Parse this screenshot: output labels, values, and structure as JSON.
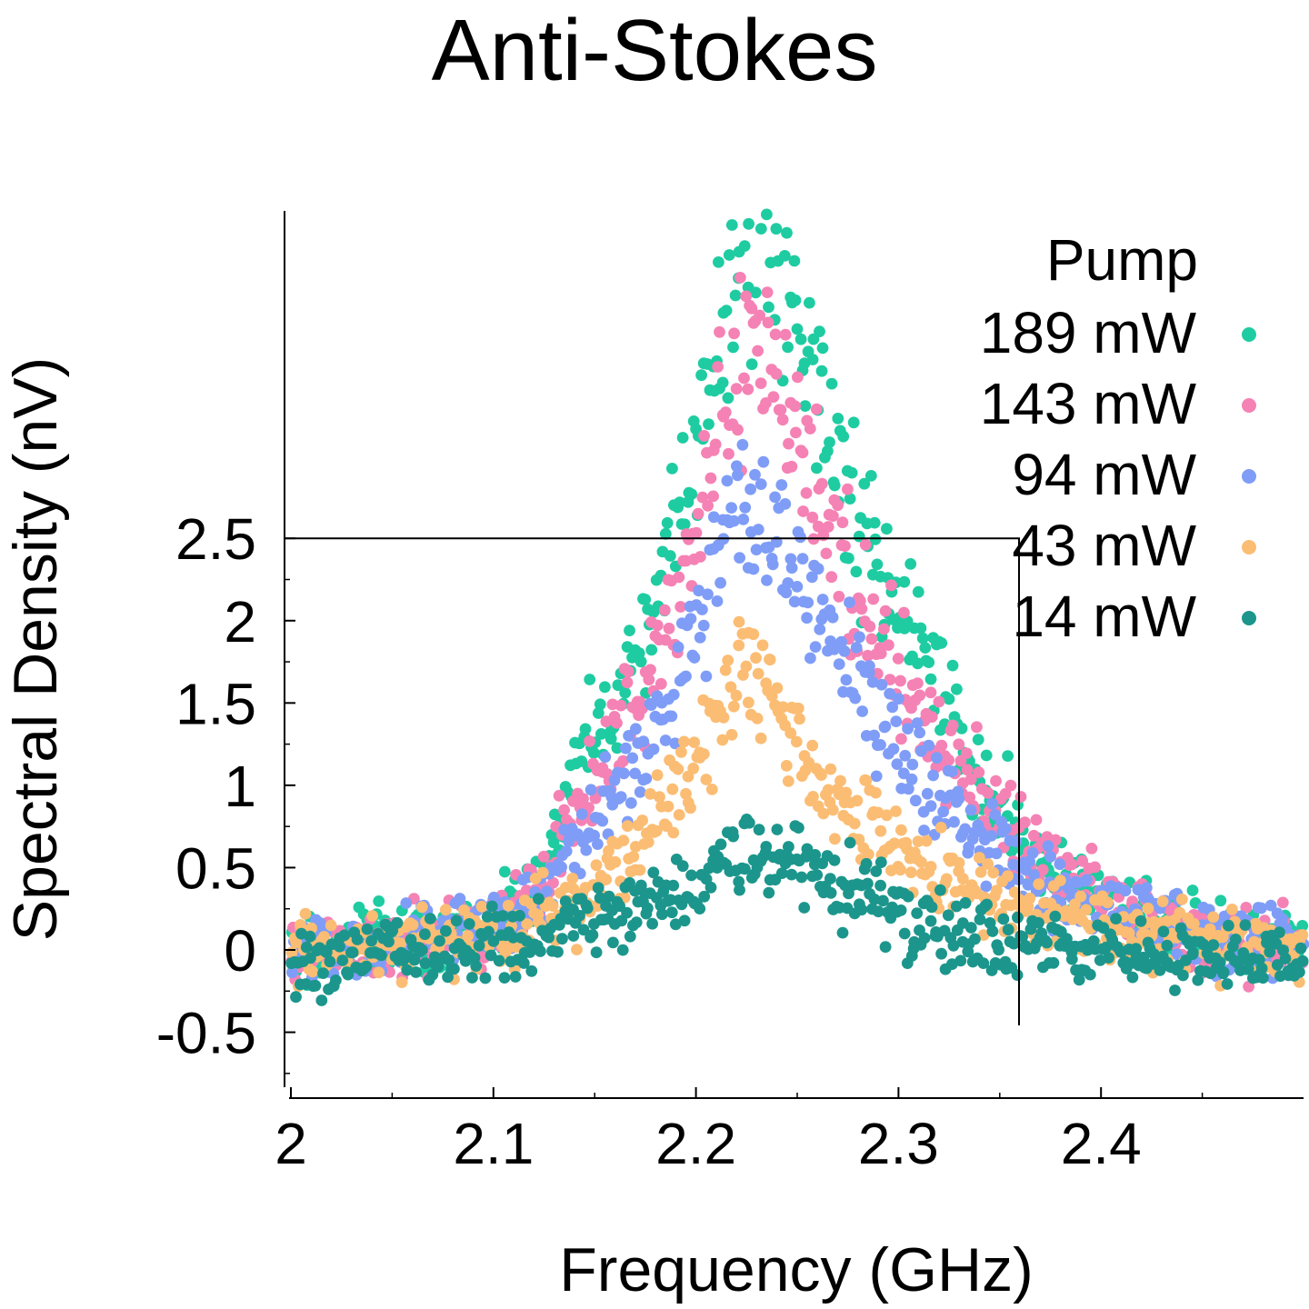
{
  "chart_data": {
    "type": "scatter",
    "title": "Anti-Stokes",
    "xlabel": "Frequency (GHz)",
    "ylabel": "Spectral Density (nV)",
    "xlim": [
      2.0,
      2.5
    ],
    "ylim": [
      -0.9,
      4.5
    ],
    "xticks": [
      {
        "value": 2.0,
        "label": "2"
      },
      {
        "value": 2.1,
        "label": "2.1"
      },
      {
        "value": 2.2,
        "label": "2.2"
      },
      {
        "value": 2.3,
        "label": "2.3"
      },
      {
        "value": 2.4,
        "label": "2.4"
      }
    ],
    "yticks": [
      {
        "value": -0.5,
        "label": "-0.5"
      },
      {
        "value": 0,
        "label": "0"
      },
      {
        "value": 0.5,
        "label": "0.5"
      },
      {
        "value": 1,
        "label": "1"
      },
      {
        "value": 1.5,
        "label": "1.5"
      },
      {
        "value": 2,
        "label": "2"
      },
      {
        "value": 2.5,
        "label": "2.5"
      }
    ],
    "grid": false,
    "legend": {
      "title": "Pump",
      "position": "top-right"
    },
    "series": [
      {
        "name": "189 mW",
        "color": "#1fcca2",
        "x": [
          2.0,
          2.025,
          2.05,
          2.075,
          2.1,
          2.125,
          2.14,
          2.15,
          2.16,
          2.17,
          2.18,
          2.19,
          2.2,
          2.205,
          2.21,
          2.215,
          2.22,
          2.225,
          2.23,
          2.235,
          2.24,
          2.245,
          2.25,
          2.255,
          2.26,
          2.265,
          2.27,
          2.28,
          2.29,
          2.3,
          2.31,
          2.32,
          2.33,
          2.34,
          2.35,
          2.36,
          2.375,
          2.4,
          2.425,
          2.45,
          2.475,
          2.5
        ],
        "y": [
          0.0,
          0.02,
          0.05,
          0.09,
          0.18,
          0.42,
          1.15,
          1.32,
          1.55,
          1.8,
          2.1,
          2.55,
          3.1,
          3.4,
          3.7,
          3.9,
          4.15,
          4.25,
          4.3,
          4.25,
          4.2,
          4.0,
          3.85,
          3.7,
          3.45,
          3.25,
          3.0,
          2.55,
          2.25,
          2.0,
          1.8,
          1.55,
          1.3,
          1.1,
          0.9,
          0.7,
          0.5,
          0.3,
          0.18,
          0.1,
          0.05,
          0.02
        ]
      },
      {
        "name": "143 mW",
        "color": "#f582b4",
        "x": [
          2.0,
          2.025,
          2.05,
          2.075,
          2.1,
          2.125,
          2.14,
          2.15,
          2.16,
          2.17,
          2.18,
          2.19,
          2.2,
          2.205,
          2.21,
          2.215,
          2.22,
          2.225,
          2.23,
          2.235,
          2.24,
          2.245,
          2.25,
          2.255,
          2.26,
          2.265,
          2.27,
          2.28,
          2.29,
          2.3,
          2.31,
          2.32,
          2.33,
          2.34,
          2.35,
          2.36,
          2.375,
          2.4,
          2.425,
          2.45,
          2.475,
          2.5
        ],
        "y": [
          0.0,
          0.02,
          0.05,
          0.08,
          0.16,
          0.36,
          0.82,
          1.0,
          1.22,
          1.5,
          1.8,
          2.2,
          2.6,
          2.85,
          3.1,
          3.3,
          3.5,
          3.6,
          3.75,
          3.65,
          3.55,
          3.4,
          3.2,
          3.05,
          2.9,
          2.7,
          2.5,
          2.2,
          1.9,
          1.7,
          1.5,
          1.3,
          1.1,
          0.95,
          0.8,
          0.65,
          0.5,
          0.32,
          0.2,
          0.11,
          0.05,
          0.02
        ]
      },
      {
        "name": "94 mW",
        "color": "#7f9df7",
        "x": [
          2.0,
          2.025,
          2.05,
          2.075,
          2.1,
          2.125,
          2.14,
          2.15,
          2.16,
          2.17,
          2.18,
          2.19,
          2.2,
          2.205,
          2.21,
          2.215,
          2.22,
          2.225,
          2.23,
          2.235,
          2.24,
          2.245,
          2.25,
          2.255,
          2.26,
          2.265,
          2.27,
          2.28,
          2.29,
          2.3,
          2.31,
          2.32,
          2.33,
          2.34,
          2.35,
          2.36,
          2.375,
          2.4,
          2.425,
          2.45,
          2.475,
          2.5
        ],
        "y": [
          0.0,
          0.02,
          0.04,
          0.07,
          0.14,
          0.32,
          0.62,
          0.78,
          0.95,
          1.12,
          1.35,
          1.6,
          1.95,
          2.15,
          2.4,
          2.55,
          2.65,
          2.6,
          2.55,
          2.5,
          2.45,
          2.4,
          2.3,
          2.2,
          2.1,
          2.0,
          1.9,
          1.65,
          1.45,
          1.25,
          1.1,
          0.95,
          0.8,
          0.7,
          0.6,
          0.5,
          0.4,
          0.28,
          0.18,
          0.1,
          0.05,
          0.02
        ]
      },
      {
        "name": "43 mW",
        "color": "#fbbd74",
        "x": [
          2.0,
          2.025,
          2.05,
          2.075,
          2.1,
          2.125,
          2.14,
          2.15,
          2.16,
          2.17,
          2.18,
          2.19,
          2.2,
          2.205,
          2.21,
          2.215,
          2.22,
          2.225,
          2.23,
          2.235,
          2.24,
          2.245,
          2.25,
          2.255,
          2.26,
          2.265,
          2.27,
          2.28,
          2.29,
          2.3,
          2.31,
          2.32,
          2.33,
          2.34,
          2.35,
          2.36,
          2.375,
          2.4,
          2.425,
          2.45,
          2.475,
          2.5
        ],
        "y": [
          0.0,
          0.02,
          0.04,
          0.06,
          0.1,
          0.18,
          0.3,
          0.38,
          0.48,
          0.62,
          0.78,
          0.95,
          1.15,
          1.28,
          1.4,
          1.5,
          1.58,
          1.62,
          1.6,
          1.55,
          1.45,
          1.35,
          1.25,
          1.15,
          1.05,
          0.98,
          0.9,
          0.8,
          0.72,
          0.62,
          0.55,
          0.48,
          0.42,
          0.36,
          0.3,
          0.25,
          0.2,
          0.14,
          0.1,
          0.06,
          0.03,
          0.01
        ]
      },
      {
        "name": "14 mW",
        "color": "#1c968c",
        "x": [
          2.0,
          2.025,
          2.05,
          2.075,
          2.1,
          2.125,
          2.14,
          2.15,
          2.16,
          2.17,
          2.18,
          2.19,
          2.2,
          2.205,
          2.21,
          2.215,
          2.22,
          2.225,
          2.23,
          2.235,
          2.24,
          2.245,
          2.25,
          2.255,
          2.26,
          2.265,
          2.27,
          2.28,
          2.29,
          2.3,
          2.31,
          2.32,
          2.33,
          2.34,
          2.35,
          2.36,
          2.375,
          2.4,
          2.425,
          2.45,
          2.475,
          2.5
        ],
        "y": [
          -0.1,
          -0.05,
          -0.02,
          0.0,
          0.05,
          0.1,
          0.15,
          0.18,
          0.2,
          0.24,
          0.28,
          0.32,
          0.38,
          0.42,
          0.48,
          0.52,
          0.55,
          0.58,
          0.6,
          0.6,
          0.58,
          0.55,
          0.52,
          0.48,
          0.45,
          0.42,
          0.38,
          0.32,
          0.28,
          0.22,
          0.18,
          0.14,
          0.1,
          0.08,
          0.05,
          0.03,
          0.02,
          0.0,
          -0.02,
          -0.04,
          -0.06,
          -0.08
        ]
      }
    ]
  }
}
